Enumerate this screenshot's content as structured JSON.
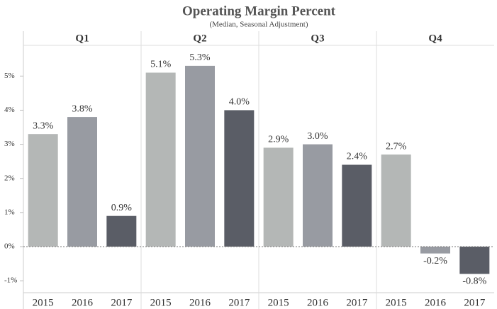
{
  "chart_data": {
    "type": "bar",
    "title": "Operating Margin Percent",
    "subtitle": "(Median, Seasonal Adjustment)",
    "colors": [
      "#b4b7b6",
      "#989ba2",
      "#5a5d66"
    ],
    "ylim": [
      -1.35,
      5.9
    ],
    "yticks": [
      {
        "value": -1,
        "label": "-1%"
      },
      {
        "value": 0,
        "label": "0%"
      },
      {
        "value": 1,
        "label": "1%"
      },
      {
        "value": 2,
        "label": "2%"
      },
      {
        "value": 3,
        "label": "3%"
      },
      {
        "value": 4,
        "label": "4%"
      },
      {
        "value": 5,
        "label": "5%"
      }
    ],
    "panels": [
      {
        "name": "Q1",
        "categories": [
          "2015",
          "2016",
          "2017"
        ],
        "values": [
          3.3,
          3.8,
          0.9
        ],
        "value_labels": [
          "3.3%",
          "3.8%",
          "0.9%"
        ]
      },
      {
        "name": "Q2",
        "categories": [
          "2015",
          "2016",
          "2017"
        ],
        "values": [
          5.1,
          5.3,
          4.0
        ],
        "value_labels": [
          "5.1%",
          "5.3%",
          "4.0%"
        ]
      },
      {
        "name": "Q3",
        "categories": [
          "2015",
          "2016",
          "2017"
        ],
        "values": [
          2.9,
          3.0,
          2.4
        ],
        "value_labels": [
          "2.9%",
          "3.0%",
          "2.4%"
        ]
      },
      {
        "name": "Q4",
        "categories": [
          "2015",
          "2016",
          "2017"
        ],
        "values": [
          2.7,
          -0.2,
          -0.8
        ],
        "value_labels": [
          "2.7%",
          "-0.2%",
          "-0.8%"
        ]
      }
    ]
  }
}
